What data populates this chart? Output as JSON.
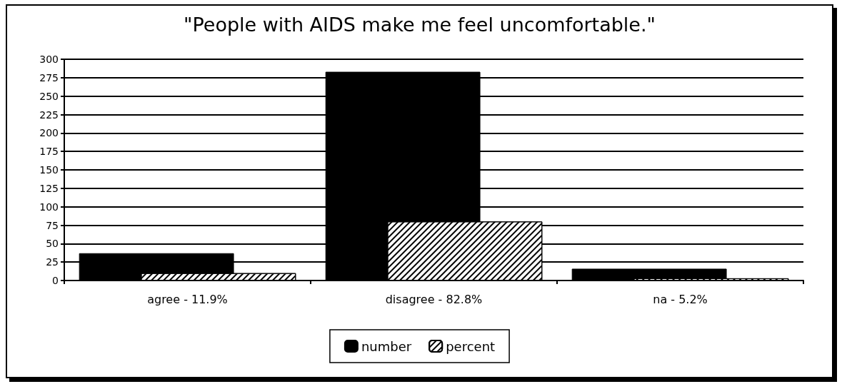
{
  "chart_data": {
    "type": "bar",
    "title": "\"People with AIDS make me feel uncomfortable.\"",
    "categories": [
      "agree - 11.9%",
      "disagree - 82.8%",
      "na - 5.2%"
    ],
    "series": [
      {
        "name": "number",
        "color": "#000000",
        "values": [
          37,
          283,
          16
        ]
      },
      {
        "name": "percent",
        "color": "#ffffff",
        "values": [
          10,
          80,
          3
        ]
      }
    ],
    "ylim": [
      0,
      300
    ],
    "yticks": [
      0,
      25,
      50,
      75,
      100,
      125,
      150,
      175,
      200,
      225,
      250,
      275,
      300
    ],
    "grid": "y",
    "legend": "bottom"
  }
}
